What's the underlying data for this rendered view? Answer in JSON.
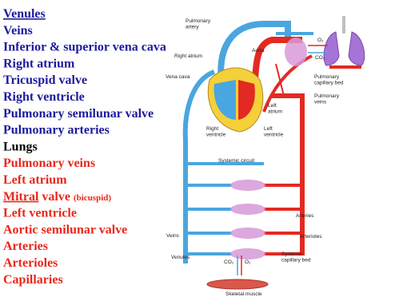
{
  "list": {
    "items": [
      {
        "text": "Venules",
        "color": "#1c1c9c",
        "underline": true
      },
      {
        "text": "Veins",
        "color": "#1c1c9c"
      },
      {
        "text": "Inferior & superior vena cava",
        "color": "#1c1c9c"
      },
      {
        "text": "Right atrium",
        "color": "#1c1c9c"
      },
      {
        "text": "Tricuspid valve",
        "color": "#1c1c9c"
      },
      {
        "text": "Right ventricle",
        "color": "#1c1c9c"
      },
      {
        "text": "Pulmonary semilunar valve",
        "color": "#1c1c9c"
      },
      {
        "text": "Pulmonary arteries",
        "color": "#1c1c9c"
      },
      {
        "text": "Lungs",
        "color": "#000000"
      },
      {
        "text": "Pulmonary veins",
        "color": "#e8281c"
      },
      {
        "text": "Left atrium",
        "color": "#e8281c"
      },
      {
        "parts": [
          {
            "text": "Mitral",
            "underline": true
          },
          {
            "text": "valve"
          },
          {
            "text": "(bicuspid)",
            "small": true
          }
        ],
        "color": "#e8281c"
      },
      {
        "text": "Left ventricle",
        "color": "#e8281c"
      },
      {
        "text": "Aortic semilunar valve",
        "color": "#e8281c"
      },
      {
        "text": "Arteries",
        "color": "#e8281c"
      },
      {
        "text": "Arterioles",
        "color": "#e8281c"
      },
      {
        "text": "Capillaries",
        "color": "#e8281c"
      }
    ]
  },
  "diagram": {
    "labels": [
      {
        "lines": [
          "Pulmonary",
          "artery"
        ]
      },
      {
        "lines": [
          "Right atrium"
        ]
      },
      {
        "lines": [
          "Vena cava"
        ]
      },
      {
        "lines": [
          "Aorta"
        ]
      },
      {
        "lines": [
          "Pulmonary",
          "capillary bed"
        ]
      },
      {
        "lines": [
          "Pulmonary",
          "veins"
        ]
      },
      {
        "lines": [
          "Left",
          "atrium"
        ]
      },
      {
        "lines": [
          "Right",
          "ventricle"
        ]
      },
      {
        "lines": [
          "Left",
          "ventricle"
        ]
      },
      {
        "lines": [
          "Systemic circuit"
        ]
      },
      {
        "lines": [
          "Arteries"
        ]
      },
      {
        "lines": [
          "Arterioles"
        ]
      },
      {
        "lines": [
          "Veins"
        ]
      },
      {
        "lines": [
          "Venules"
        ]
      },
      {
        "lines": [
          "Systemic",
          "capillary bed"
        ]
      },
      {
        "lines": [
          "Skeletal muscle"
        ]
      },
      {
        "lines": [
          "O₂"
        ]
      },
      {
        "lines": [
          "CO₂"
        ]
      },
      {
        "lines": [
          "CO₂"
        ]
      },
      {
        "lines": [
          "O₂"
        ]
      }
    ]
  }
}
